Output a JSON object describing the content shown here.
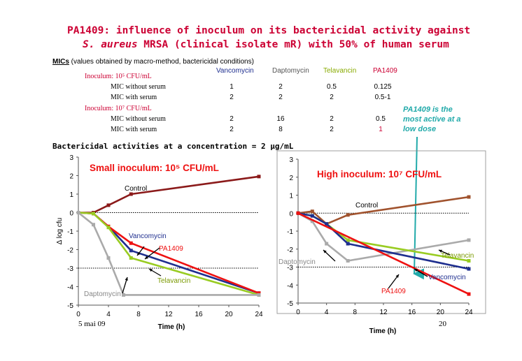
{
  "title_line1": "PA1409: influence of inoculum on its bactericidal activity against",
  "title_line2_italic": "S. aureus",
  "title_line2_rest": " MRSA (clinical isolate mR) with 50% of human serum",
  "mic": {
    "label": "MICs",
    "subtitle": " (values obtained by macro-method, bactericidal conditions)",
    "columns": [
      {
        "name": "Vancomycin",
        "color": "#1f2f8f"
      },
      {
        "name": "Daptomycin",
        "color": "#555555"
      },
      {
        "name": "Telavancin",
        "color": "#88aa00"
      },
      {
        "name": "PA1409",
        "color": "#cc0033"
      }
    ],
    "inoculum1": "Inoculum: 10⁵ CFU/mL",
    "inoculum2": "Inoculum: 10⁷ CFU/mL",
    "rows": [
      {
        "label": "MIC without serum",
        "values": [
          "1",
          "2",
          "0.5",
          "0.125"
        ]
      },
      {
        "label": "MIC with serum",
        "values": [
          "2",
          "2",
          "2",
          "0.5-1"
        ]
      },
      {
        "label": "MIC without serum",
        "values": [
          "2",
          "16",
          "2",
          "0.5"
        ]
      },
      {
        "label": "MIC with serum",
        "values": [
          "2",
          "8",
          "2",
          "1"
        ]
      }
    ]
  },
  "note": "PA1409 is the most active at a low dose",
  "bactericidal_title": "Bactericidal activities at a concentration = 2 μg/mL",
  "footer_left": "5 mai 09",
  "footer_right": "20",
  "chart_data": [
    {
      "type": "line",
      "title": "Small inoculum: 10⁵ CFU/mL",
      "xlabel": "Time (h)",
      "ylabel": "Δ log cfu",
      "xlim": [
        0,
        24
      ],
      "ylim": [
        -5,
        3
      ],
      "xticks": [
        0,
        4,
        8,
        12,
        16,
        20,
        24
      ],
      "yticks": [
        3,
        2,
        1,
        0,
        -1,
        -2,
        -3,
        -4,
        -5
      ],
      "reference_lines": [
        0,
        -3
      ],
      "series": [
        {
          "name": "Control",
          "color": "#8b1a1a",
          "points": [
            [
              0,
              0
            ],
            [
              2,
              0
            ],
            [
              4,
              0.4
            ],
            [
              7,
              1.0
            ],
            [
              24,
              1.95
            ]
          ]
        },
        {
          "name": "Vancomycin",
          "color": "#1f2f8f",
          "points": [
            [
              0,
              0
            ],
            [
              2,
              -0.05
            ],
            [
              4,
              -0.75
            ],
            [
              7,
              -2.05
            ],
            [
              24,
              -4.35
            ]
          ]
        },
        {
          "name": "PA1409",
          "color": "#ee1111",
          "points": [
            [
              0,
              0
            ],
            [
              2,
              -0.05
            ],
            [
              4,
              -0.75
            ],
            [
              7,
              -1.65
            ],
            [
              24,
              -4.35
            ]
          ]
        },
        {
          "name": "Telavancin",
          "color": "#99cc22",
          "points": [
            [
              0,
              0
            ],
            [
              2,
              -0.05
            ],
            [
              4,
              -0.8
            ],
            [
              7,
              -2.45
            ],
            [
              24,
              -4.45
            ]
          ]
        },
        {
          "name": "Daptomycin",
          "color": "#aaaaaa",
          "points": [
            [
              0,
              0
            ],
            [
              2,
              -0.65
            ],
            [
              4,
              -2.45
            ],
            [
              6,
              -4.45
            ],
            [
              24,
              -4.45
            ]
          ]
        }
      ]
    },
    {
      "type": "line",
      "title": "High inoculum: 10⁷ CFU/mL",
      "xlabel": "Time (h)",
      "ylabel": "",
      "xlim": [
        0,
        24
      ],
      "ylim": [
        -5,
        3
      ],
      "xticks": [
        0,
        4,
        8,
        12,
        16,
        20,
        24
      ],
      "yticks": [
        3,
        2,
        1,
        0,
        -1,
        -2,
        -3,
        -4,
        -5
      ],
      "reference_lines": [
        0,
        -3
      ],
      "series": [
        {
          "name": "Control",
          "color": "#a0522d",
          "points": [
            [
              0,
              0
            ],
            [
              2,
              0.1
            ],
            [
              4,
              -0.6
            ],
            [
              7,
              -0.1
            ],
            [
              24,
              0.9
            ]
          ]
        },
        {
          "name": "Daptomycin",
          "color": "#aaaaaa",
          "points": [
            [
              0,
              0
            ],
            [
              2,
              -0.45
            ],
            [
              4,
              -1.7
            ],
            [
              7,
              -2.65
            ],
            [
              24,
              -1.5
            ]
          ]
        },
        {
          "name": "Telavancin",
          "color": "#99cc22",
          "points": [
            [
              0,
              0
            ],
            [
              2,
              -0.15
            ],
            [
              4,
              -0.6
            ],
            [
              7,
              -1.5
            ],
            [
              24,
              -2.65
            ]
          ]
        },
        {
          "name": "Vancomycin",
          "color": "#1f2f8f",
          "points": [
            [
              0,
              0
            ],
            [
              2,
              -0.15
            ],
            [
              4,
              -0.6
            ],
            [
              7,
              -1.7
            ],
            [
              24,
              -3.1
            ]
          ]
        },
        {
          "name": "PA1409",
          "color": "#ee1111",
          "points": [
            [
              0,
              0
            ],
            [
              24,
              -4.5
            ]
          ]
        }
      ]
    }
  ]
}
